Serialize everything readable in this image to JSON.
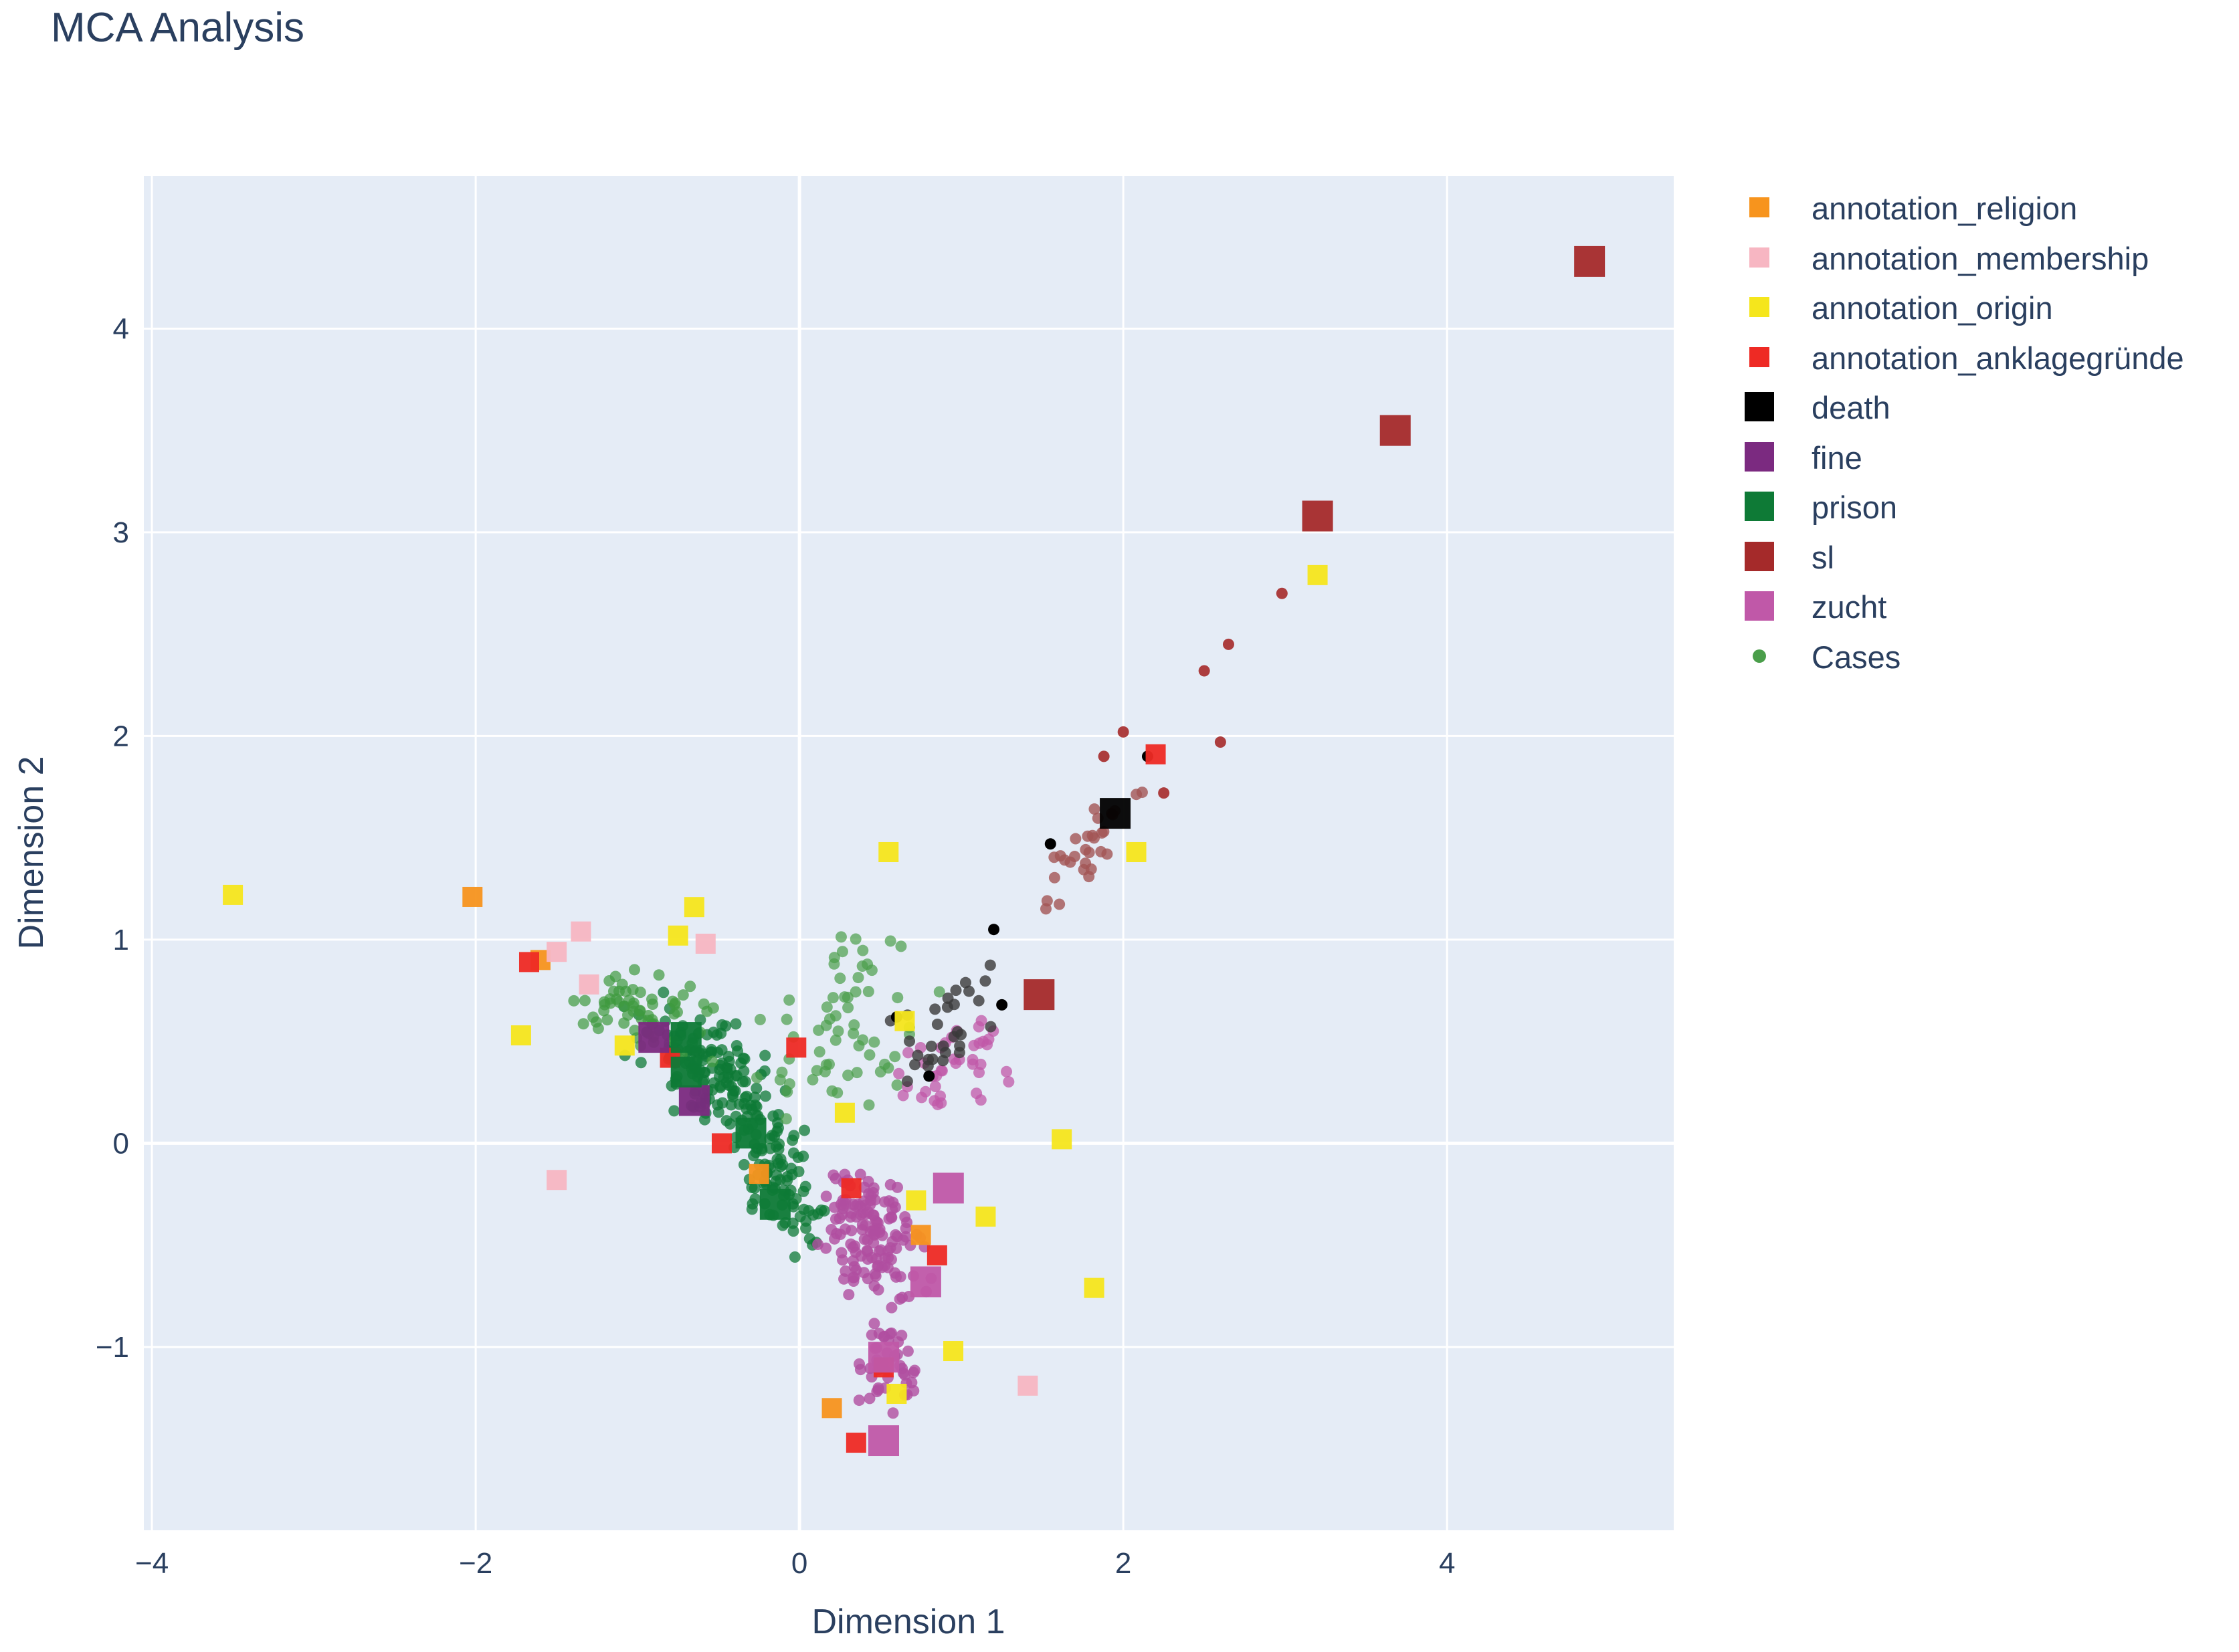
{
  "chart_data": {
    "type": "scatter",
    "title": "MCA Analysis",
    "xlabel": "Dimension 1",
    "ylabel": "Dimension 2",
    "xlim": [
      -4.05,
      5.4
    ],
    "ylim": [
      -1.9,
      4.75
    ],
    "x_ticks": [
      -4,
      -2,
      0,
      2,
      4
    ],
    "y_ticks": [
      -1,
      0,
      1,
      2,
      3,
      4
    ],
    "x_tick_labels": [
      "−4",
      "−2",
      "0",
      "2",
      "4"
    ],
    "y_tick_labels": [
      "−1",
      "0",
      "1",
      "2",
      "3",
      "4"
    ],
    "grid": true,
    "legend_position": "right",
    "plot_background": "#e5ecf6",
    "series": [
      {
        "name": "annotation_religion",
        "color": "#f7941d",
        "marker": "square",
        "size": "small",
        "points": [
          [
            -2.02,
            1.21
          ],
          [
            0.2,
            -1.3
          ],
          [
            -1.6,
            0.9
          ],
          [
            0.75,
            -0.45
          ],
          [
            -0.25,
            -0.15
          ]
        ]
      },
      {
        "name": "annotation_membership",
        "color": "#f7b6c2",
        "marker": "square",
        "size": "small",
        "points": [
          [
            -1.35,
            1.04
          ],
          [
            -0.58,
            0.98
          ],
          [
            -1.5,
            -0.18
          ],
          [
            1.41,
            -1.19
          ],
          [
            -1.3,
            0.78
          ],
          [
            -1.5,
            0.94
          ]
        ]
      },
      {
        "name": "annotation_origin",
        "color": "#f5e61c",
        "marker": "square",
        "size": "small",
        "points": [
          [
            -3.5,
            1.22
          ],
          [
            -0.65,
            1.16
          ],
          [
            -0.75,
            1.02
          ],
          [
            -1.72,
            0.53
          ],
          [
            -1.08,
            0.48
          ],
          [
            0.55,
            1.43
          ],
          [
            0.65,
            0.6
          ],
          [
            2.08,
            1.43
          ],
          [
            3.2,
            2.79
          ],
          [
            1.62,
            0.02
          ],
          [
            1.15,
            -0.36
          ],
          [
            1.82,
            -0.71
          ],
          [
            0.95,
            -1.02
          ],
          [
            0.6,
            -1.23
          ],
          [
            0.28,
            0.15
          ],
          [
            0.72,
            -0.28
          ]
        ]
      },
      {
        "name": "annotation_anklagegründe",
        "color": "#ee2a24",
        "marker": "square",
        "size": "small",
        "points": [
          [
            -1.67,
            0.89
          ],
          [
            -0.02,
            0.47
          ],
          [
            -0.48,
            0.0
          ],
          [
            2.2,
            1.91
          ],
          [
            0.85,
            -0.55
          ],
          [
            0.35,
            -1.47
          ],
          [
            0.52,
            -1.1
          ],
          [
            -0.8,
            0.42
          ],
          [
            0.32,
            -0.22
          ]
        ]
      },
      {
        "name": "death",
        "color": "#000000",
        "marker": "square",
        "size": "large",
        "points": [
          [
            1.95,
            1.62
          ]
        ]
      },
      {
        "name": "fine",
        "color": "#7b2a80",
        "marker": "square",
        "size": "large",
        "points": [
          [
            -0.65,
            0.21
          ],
          [
            -0.9,
            0.52
          ]
        ]
      },
      {
        "name": "prison",
        "color": "#0e7a36",
        "marker": "square",
        "size": "large",
        "points": [
          [
            -0.7,
            0.52
          ],
          [
            -0.7,
            0.35
          ],
          [
            -0.15,
            -0.3
          ],
          [
            -0.3,
            0.05
          ]
        ]
      },
      {
        "name": "sl",
        "color": "#a52a2a",
        "marker": "square",
        "size": "large",
        "points": [
          [
            4.88,
            4.33
          ],
          [
            3.68,
            3.5
          ],
          [
            3.2,
            3.08
          ],
          [
            1.48,
            0.73
          ]
        ]
      },
      {
        "name": "zucht",
        "color": "#c058a8",
        "marker": "square",
        "size": "large",
        "points": [
          [
            0.92,
            -0.22
          ],
          [
            0.78,
            -0.68
          ],
          [
            0.52,
            -1.05
          ],
          [
            0.52,
            -1.46
          ]
        ]
      },
      {
        "name": "Cases",
        "color": "#4a9e4a",
        "marker": "circle",
        "size": "dot",
        "points": []
      }
    ]
  }
}
